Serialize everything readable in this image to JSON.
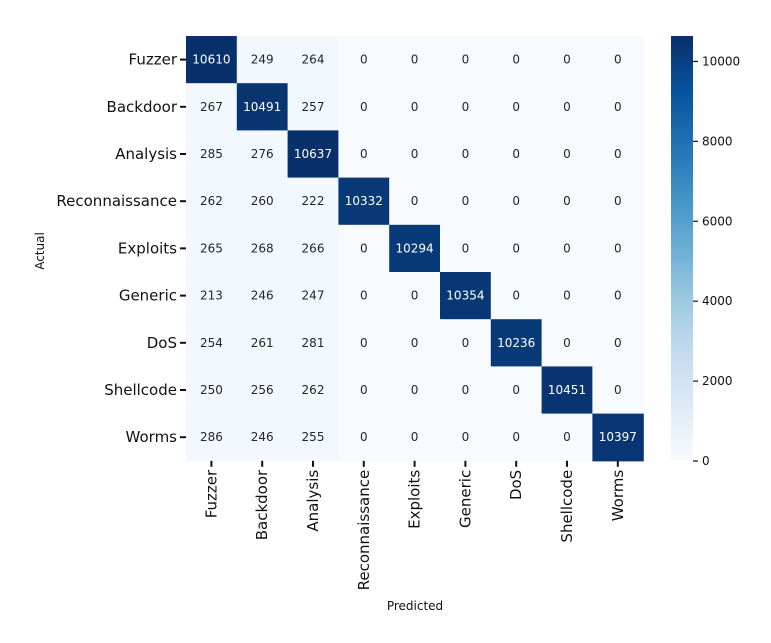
{
  "chart_data": {
    "type": "heatmap",
    "xlabel": "Predicted",
    "ylabel": "Actual",
    "x_categories": [
      "Fuzzer",
      "Backdoor",
      "Analysis",
      "Reconnaissance",
      "Exploits",
      "Generic",
      "DoS",
      "Shellcode",
      "Worms"
    ],
    "y_categories": [
      "Fuzzer",
      "Backdoor",
      "Analysis",
      "Reconnaissance",
      "Exploits",
      "Generic",
      "DoS",
      "Shellcode",
      "Worms"
    ],
    "values": [
      [
        10610,
        249,
        264,
        0,
        0,
        0,
        0,
        0,
        0
      ],
      [
        267,
        10491,
        257,
        0,
        0,
        0,
        0,
        0,
        0
      ],
      [
        285,
        276,
        10637,
        0,
        0,
        0,
        0,
        0,
        0
      ],
      [
        262,
        260,
        222,
        10332,
        0,
        0,
        0,
        0,
        0
      ],
      [
        265,
        268,
        266,
        0,
        10294,
        0,
        0,
        0,
        0
      ],
      [
        213,
        246,
        247,
        0,
        0,
        10354,
        0,
        0,
        0
      ],
      [
        254,
        261,
        281,
        0,
        0,
        0,
        10236,
        0,
        0
      ],
      [
        250,
        256,
        262,
        0,
        0,
        0,
        0,
        10451,
        0
      ],
      [
        286,
        246,
        255,
        0,
        0,
        0,
        0,
        0,
        10397
      ]
    ],
    "colorbar": {
      "colormap": "Blues",
      "range": [
        0,
        10637
      ],
      "ticks": [
        0,
        2000,
        4000,
        6000,
        8000,
        10000
      ],
      "color_low": "#f7fbff",
      "color_high": "#08306b"
    }
  }
}
